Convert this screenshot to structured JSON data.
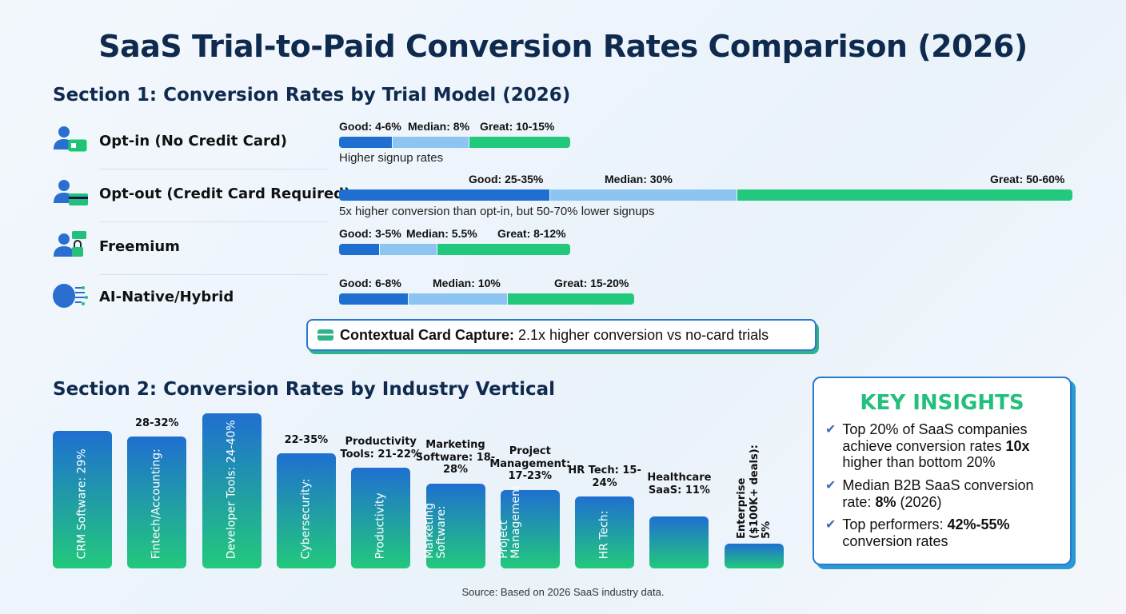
{
  "title": "SaaS Trial-to-Paid Conversion Rates Comparison (2026)",
  "section1": {
    "title": "Section 1: Conversion Rates by Trial Model (2026)",
    "models": [
      {
        "name": "Opt-in (No Credit Card)",
        "icon": "user-id-card-icon",
        "good": "Good: 4-6%",
        "median": "Median: 8%",
        "great": "Great: 10-15%",
        "note": "Higher signup rates"
      },
      {
        "name": "Opt-out (Credit Card Required)",
        "icon": "user-credit-card-icon",
        "good": "Good: 25-35%",
        "median": "Median: 30%",
        "great": "Great: 50-60%",
        "note": "5x higher conversion than opt-in, but 50-70% lower signups"
      },
      {
        "name": "Freemium",
        "icon": "user-lock-chat-icon",
        "good": "Good: 3-5%",
        "median": "Median: 5.5%",
        "great": "Great: 8-12%",
        "note": ""
      },
      {
        "name": "AI-Native/Hybrid",
        "icon": "ai-brain-icon",
        "good": "Good: 6-8%",
        "median": "Median: 10%",
        "great": "Great: 15-20%",
        "note": ""
      }
    ],
    "callout": {
      "bold": "Contextual Card Capture:",
      "text": " 2.1x higher conversion vs no-card trials"
    },
    "colors": {
      "good": "#1f6fd0",
      "median": "#8cc4f2",
      "great": "#22c97c"
    }
  },
  "chart_data": {
    "type": "bar",
    "title": "Section 2: Conversion Rates by Industry Vertical",
    "categories": [
      "CRM Software",
      "Fintech/Accounting",
      "Developer Tools",
      "Cybersecurity",
      "Productivity Tools",
      "Marketing Software",
      "Project Management",
      "HR Tech",
      "Healthcare SaaS",
      "Enterprise ($100K+ deals)"
    ],
    "values": [
      "29%",
      "28-32%",
      "24-40%",
      "22-35%",
      "21-22%",
      "18-28%",
      "17-23%",
      "15-24%",
      "11%",
      "5%"
    ],
    "top_labels": [
      "",
      "28-32%",
      "",
      "22-35%",
      "Productivity Tools: 21-22%",
      "Marketing Software: 18-28%",
      "Project Management: 17-23%",
      "HR Tech: 15-24%",
      "Healthcare SaaS: 11%",
      "Enterprise ($100K+ deals): 5%"
    ],
    "inner_labels": [
      "CRM Software: 29%",
      "Fintech/Accounting:",
      "Developer Tools: 24-40%",
      "Cybersecurity:",
      "Productivity",
      "Marketing Software:",
      "Project Management",
      "HR Tech:",
      "",
      ""
    ]
  },
  "insights": {
    "title": "KEY INSIGHTS",
    "items": [
      {
        "pre": "Top 20% of SaaS companies achieve conversion rates ",
        "bold": "10x",
        "post": " higher than bottom 20%"
      },
      {
        "pre": "Median B2B SaaS conversion rate: ",
        "bold": "8%",
        "post": " (2026)"
      },
      {
        "pre": "Top performers: ",
        "bold": "42%-55%",
        "post": " conversion rates"
      }
    ]
  },
  "source": "Source: Based on 2026 SaaS industry data."
}
